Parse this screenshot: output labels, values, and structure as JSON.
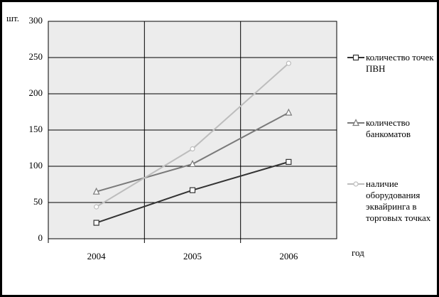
{
  "chart_data": {
    "type": "line",
    "y_label": "шт.",
    "x_label": "год",
    "categories": [
      "2004",
      "2005",
      "2006"
    ],
    "series": [
      {
        "name": "количество точек ПВН",
        "color": "#333333",
        "marker": "square",
        "values": [
          22,
          67,
          106
        ]
      },
      {
        "name": "количество банкоматов",
        "color": "#7a7a7a",
        "marker": "triangle",
        "values": [
          65,
          103,
          174
        ]
      },
      {
        "name": "наличие оборудования эквайринга в торговых точках",
        "color": "#bdbdbd",
        "marker": "circle",
        "values": [
          44,
          124,
          242
        ]
      }
    ],
    "ylim": [
      0,
      300
    ],
    "yticks": [
      0,
      50,
      100,
      150,
      200,
      250,
      300
    ],
    "grid": true,
    "legend": "right"
  }
}
